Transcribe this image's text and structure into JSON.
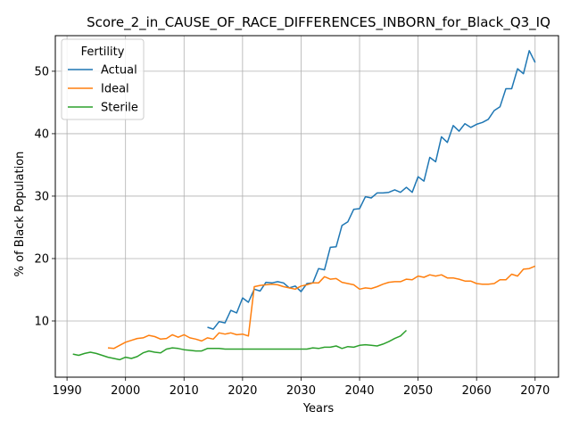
{
  "chart_data": {
    "type": "line",
    "title": "Score_2_in_CAUSE_OF_RACE_DIFFERENCES_INBORN_for_Black_Q3_IQ",
    "xlabel": "Years",
    "ylabel": "% of Black Population",
    "xlim": [
      1988,
      2074
    ],
    "ylim": [
      1.0,
      55.7
    ],
    "xticks": [
      1990,
      2000,
      2010,
      2020,
      2030,
      2040,
      2050,
      2060,
      2070
    ],
    "yticks": [
      10,
      20,
      30,
      40,
      50
    ],
    "grid": true,
    "legend": {
      "title": "Fertility",
      "placement": "top-left"
    },
    "series": [
      {
        "name": "Actual",
        "color": "#1f77b4",
        "x": [
          2014,
          2015,
          2016,
          2017,
          2018,
          2019,
          2020,
          2021,
          2022,
          2023,
          2024,
          2025,
          2026,
          2027,
          2028,
          2029,
          2030,
          2031,
          2032,
          2033,
          2034,
          2035,
          2036,
          2037,
          2038,
          2039,
          2040,
          2041,
          2042,
          2043,
          2044,
          2045,
          2046,
          2047,
          2048,
          2049,
          2050,
          2051,
          2052,
          2053,
          2054,
          2055,
          2056,
          2057,
          2058,
          2059,
          2060,
          2061,
          2062,
          2063,
          2064,
          2065,
          2066,
          2067,
          2068,
          2069,
          2070
        ],
        "y": [
          9.0,
          8.7,
          9.9,
          9.7,
          11.7,
          11.3,
          13.7,
          13.0,
          15.1,
          14.8,
          16.2,
          16.1,
          16.3,
          16.1,
          15.3,
          15.6,
          14.7,
          16.0,
          16.1,
          18.4,
          18.2,
          21.8,
          21.9,
          25.3,
          25.9,
          27.9,
          28.0,
          29.9,
          29.7,
          30.5,
          30.5,
          30.6,
          31.0,
          30.6,
          31.4,
          30.6,
          33.1,
          32.4,
          36.2,
          35.5,
          39.5,
          38.6,
          41.3,
          40.4,
          41.6,
          41.0,
          41.5,
          41.8,
          42.3,
          43.7,
          44.3,
          47.2,
          47.2,
          50.4,
          49.6,
          53.3,
          51.4
        ]
      },
      {
        "name": "Ideal",
        "color": "#ff7f0e",
        "x": [
          1997,
          1998,
          1999,
          2000,
          2001,
          2002,
          2003,
          2004,
          2005,
          2006,
          2007,
          2008,
          2009,
          2010,
          2011,
          2012,
          2013,
          2014,
          2015,
          2016,
          2017,
          2018,
          2019,
          2020,
          2021,
          2022,
          2023,
          2024,
          2025,
          2026,
          2027,
          2028,
          2029,
          2030,
          2031,
          2032,
          2033,
          2034,
          2035,
          2036,
          2037,
          2038,
          2039,
          2040,
          2041,
          2042,
          2043,
          2044,
          2045,
          2046,
          2047,
          2048,
          2049,
          2050,
          2051,
          2052,
          2053,
          2054,
          2055,
          2056,
          2057,
          2058,
          2059,
          2060,
          2061,
          2062,
          2063,
          2064,
          2065,
          2066,
          2067,
          2068,
          2069,
          2070
        ],
        "y": [
          5.7,
          5.6,
          6.1,
          6.6,
          6.9,
          7.2,
          7.3,
          7.7,
          7.5,
          7.1,
          7.2,
          7.8,
          7.4,
          7.8,
          7.3,
          7.1,
          6.8,
          7.3,
          7.1,
          8.1,
          7.9,
          8.1,
          7.8,
          7.9,
          7.6,
          15.5,
          15.7,
          15.8,
          15.9,
          15.8,
          15.5,
          15.3,
          15.1,
          15.6,
          15.8,
          16.1,
          16.1,
          17.1,
          16.7,
          16.8,
          16.2,
          16.0,
          15.8,
          15.1,
          15.3,
          15.2,
          15.5,
          15.9,
          16.2,
          16.3,
          16.3,
          16.7,
          16.6,
          17.2,
          17.0,
          17.4,
          17.2,
          17.4,
          16.9,
          16.9,
          16.7,
          16.4,
          16.4,
          16.0,
          15.9,
          15.9,
          16.0,
          16.6,
          16.6,
          17.5,
          17.2,
          18.3,
          18.4,
          18.8
        ]
      },
      {
        "name": "Sterile",
        "color": "#2ca02c",
        "x": [
          1991,
          1992,
          1993,
          1994,
          1995,
          1996,
          1997,
          1998,
          1999,
          2000,
          2001,
          2002,
          2003,
          2004,
          2005,
          2006,
          2007,
          2008,
          2009,
          2010,
          2011,
          2012,
          2013,
          2014,
          2015,
          2016,
          2017,
          2018,
          2019,
          2020,
          2021,
          2022,
          2023,
          2024,
          2025,
          2026,
          2027,
          2028,
          2029,
          2030,
          2031,
          2032,
          2033,
          2034,
          2035,
          2036,
          2037,
          2038,
          2039,
          2040,
          2041,
          2042,
          2043,
          2044,
          2045,
          2046,
          2047,
          2048
        ],
        "y": [
          4.7,
          4.5,
          4.8,
          5.0,
          4.8,
          4.5,
          4.2,
          4.0,
          3.8,
          4.2,
          4.0,
          4.3,
          4.9,
          5.2,
          5.0,
          4.9,
          5.5,
          5.7,
          5.6,
          5.4,
          5.3,
          5.2,
          5.2,
          5.6,
          5.6,
          5.6,
          5.5,
          5.5,
          5.5,
          5.5,
          5.5,
          5.5,
          5.5,
          5.5,
          5.5,
          5.5,
          5.5,
          5.5,
          5.5,
          5.5,
          5.5,
          5.7,
          5.6,
          5.8,
          5.8,
          6.0,
          5.6,
          5.9,
          5.8,
          6.1,
          6.2,
          6.1,
          6.0,
          6.3,
          6.7,
          7.2,
          7.6,
          8.5
        ]
      }
    ]
  }
}
